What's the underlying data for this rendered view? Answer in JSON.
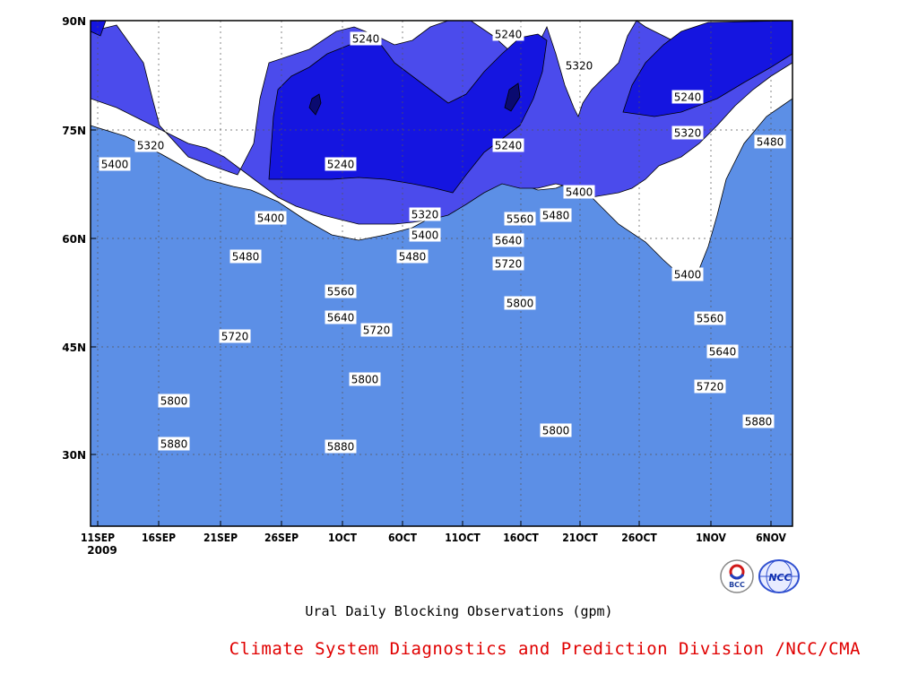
{
  "chart_data": {
    "type": "contour",
    "title": "Ural Daily Blocking Observations (gpm)",
    "credit": "Climate System Diagnostics and Prediction Division /NCC/CMA",
    "x_ticks": [
      "11SEP",
      "16SEP",
      "21SEP",
      "26SEP",
      "1OCT",
      "6OCT",
      "11OCT",
      "16OCT",
      "21OCT",
      "26OCT",
      "1NOV",
      "6NOV"
    ],
    "x_year_label": "2009",
    "y_ticks": [
      "30N",
      "45N",
      "60N",
      "75N",
      "90N"
    ],
    "ylim": [
      20,
      90
    ],
    "xlim": [
      "11SEP2009",
      "8NOV2009"
    ],
    "contour_levels": [
      5240,
      5320,
      5400,
      5480,
      5560,
      5640,
      5720,
      5800,
      5880
    ],
    "level_colors": [
      "#1515e0",
      "#4b4bec",
      "#5c8fe6",
      "#64c3fb",
      "#f8f878",
      "#fbdf96",
      "#fa9c66",
      "#fa7140",
      "#f5717c",
      "#ef3547"
    ],
    "contour_labels": [
      {
        "value": "5240"
      },
      {
        "value": "5240"
      },
      {
        "value": "5320"
      },
      {
        "value": "5240"
      },
      {
        "value": "5320"
      },
      {
        "value": "5480"
      },
      {
        "value": "5400"
      },
      {
        "value": "5320"
      },
      {
        "value": "5240"
      },
      {
        "value": "5240"
      },
      {
        "value": "5400"
      },
      {
        "value": "5400"
      },
      {
        "value": "5320"
      },
      {
        "value": "5560"
      },
      {
        "value": "5480"
      },
      {
        "value": "5400"
      },
      {
        "value": "5480"
      },
      {
        "value": "5640"
      },
      {
        "value": "5720"
      },
      {
        "value": "5400"
      },
      {
        "value": "5560"
      },
      {
        "value": "5480"
      },
      {
        "value": "5800"
      },
      {
        "value": "5640"
      },
      {
        "value": "5720"
      },
      {
        "value": "5560"
      },
      {
        "value": "5720"
      },
      {
        "value": "5640"
      },
      {
        "value": "5800"
      },
      {
        "value": "5720"
      },
      {
        "value": "5800"
      },
      {
        "value": "5880"
      },
      {
        "value": "5880"
      },
      {
        "value": "5800"
      },
      {
        "value": "5880"
      }
    ],
    "grid": true,
    "colorbar": false
  },
  "logos": {
    "bcc_text": "BCC",
    "ncc_text": "NCC"
  }
}
